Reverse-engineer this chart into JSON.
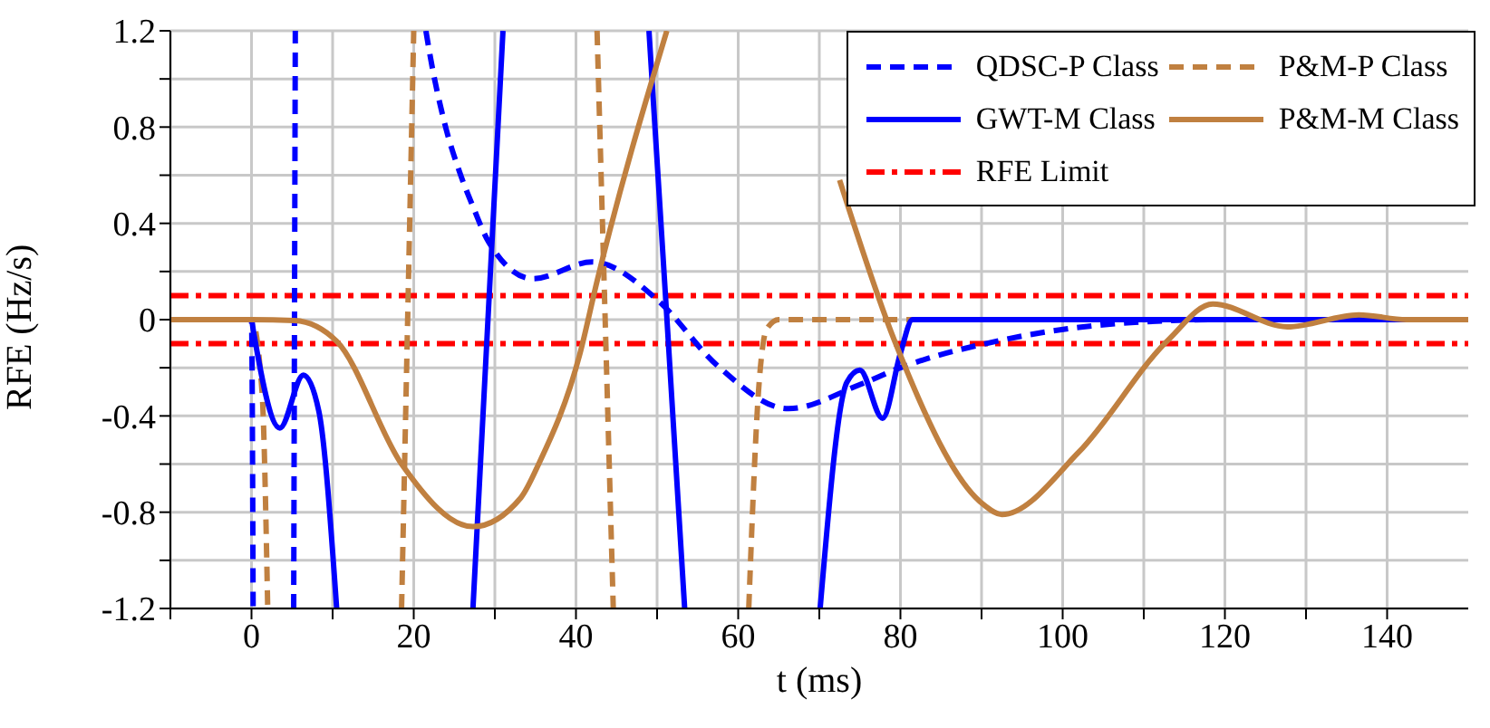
{
  "chart_data": {
    "type": "line",
    "xlabel": "t (ms)",
    "ylabel": "RFE (Hz/s)",
    "xlim": [
      -10,
      150
    ],
    "ylim": [
      -1.2,
      1.2
    ],
    "xticks": [
      {
        "value": -10,
        "label": null
      },
      0,
      {
        "value": 10,
        "label": null
      },
      20,
      {
        "value": 30,
        "label": null
      },
      40,
      {
        "value": 50,
        "label": null
      },
      60,
      {
        "value": 70,
        "label": null
      },
      80,
      {
        "value": 90,
        "label": null
      },
      100,
      {
        "value": 110,
        "label": null
      },
      120,
      {
        "value": 130,
        "label": null
      },
      140
    ],
    "yticks": [
      -1.2,
      {
        "value": -1.0,
        "label": null
      },
      -0.8,
      {
        "value": -0.6,
        "label": null
      },
      -0.4,
      {
        "value": -0.2,
        "label": null
      },
      0,
      {
        "value": 0.2,
        "label": null
      },
      0.4,
      {
        "value": 0.6,
        "label": null
      },
      0.8,
      {
        "value": 1.0,
        "label": null
      },
      1.2
    ],
    "grid": true,
    "legend": "top right",
    "marker": "none",
    "series": [
      {
        "name": "QDSC-P Class",
        "color": "#0000ff",
        "line_style": "dashed",
        "x": [
          -10,
          0,
          0.2,
          2.8,
          5.2,
          5.4,
          13,
          21.5,
          22,
          23.7,
          25.9,
          27.3,
          29.2,
          34.7,
          42,
          43.1,
          50.1,
          57.4,
          66.2,
          75,
          80,
          92.5,
          109.5,
          120,
          150
        ],
        "values": [
          0,
          0,
          -1.2,
          null,
          -1.2,
          1.2,
          null,
          1.2,
          1.1,
          0.83,
          0.59,
          0.47,
          0.325,
          0.17,
          0.24,
          0.235,
          0.08,
          -0.19,
          -0.37,
          -0.27,
          -0.2,
          -0.085,
          -0.01,
          0,
          0
        ]
      },
      {
        "name": "P&M-P Class",
        "color": "#c08040",
        "line_style": "dashed",
        "x": [
          -10,
          0,
          1.3,
          2,
          10,
          18.5,
          20,
          30,
          42.6,
          44.6,
          52,
          61.3,
          62.5,
          63.5,
          65,
          150
        ],
        "values": [
          0,
          0,
          -0.3,
          -1.2,
          null,
          -1.2,
          1.2,
          null,
          1.2,
          -1.2,
          null,
          -1.2,
          -0.3,
          -0.04,
          0,
          0
        ]
      },
      {
        "name": "GWT-M Class",
        "color": "#0000ff",
        "line_style": "solid",
        "x": [
          -10,
          0,
          0.2,
          3.5,
          6.4,
          8.3,
          10.5,
          20,
          27.3,
          31,
          40,
          49,
          51.2,
          53.4,
          60,
          70.1,
          73.4,
          75,
          77.8,
          80,
          81.5,
          150
        ],
        "values": [
          0,
          0,
          -0.04,
          -0.45,
          -0.23,
          -0.38,
          -1.2,
          null,
          -1.2,
          1.2,
          null,
          1.2,
          0.01,
          -1.2,
          null,
          -1.2,
          -0.26,
          -0.21,
          -0.41,
          -0.14,
          0,
          0
        ]
      },
      {
        "name": "P&M-M Class",
        "color": "#c08040",
        "line_style": "solid",
        "x": [
          -10,
          0,
          5.3,
          10.5,
          18.5,
          27.3,
          33.2,
          35.4,
          40.5,
          42.6,
          51.2,
          60,
          72.5,
          79.3,
          90.3,
          92.5,
          102,
          113,
          118.5,
          127.7,
          136.5,
          142.4,
          150
        ],
        "values": [
          0,
          0,
          -0.004,
          -0.09,
          -0.6,
          -0.86,
          -0.74,
          -0.6,
          -0.14,
          0.16,
          1.2,
          null,
          0.58,
          -0.09,
          -0.77,
          -0.81,
          -0.55,
          -0.085,
          0.065,
          -0.03,
          0.02,
          0,
          0
        ]
      }
    ],
    "ref_lines": [
      {
        "axis": "y",
        "value": 0.1,
        "label": "RFE Limit",
        "color": "#ff0000",
        "line_style": "dashdot"
      },
      {
        "axis": "y",
        "value": -0.1,
        "color": "#ff0000",
        "line_style": "dashdot"
      }
    ]
  }
}
